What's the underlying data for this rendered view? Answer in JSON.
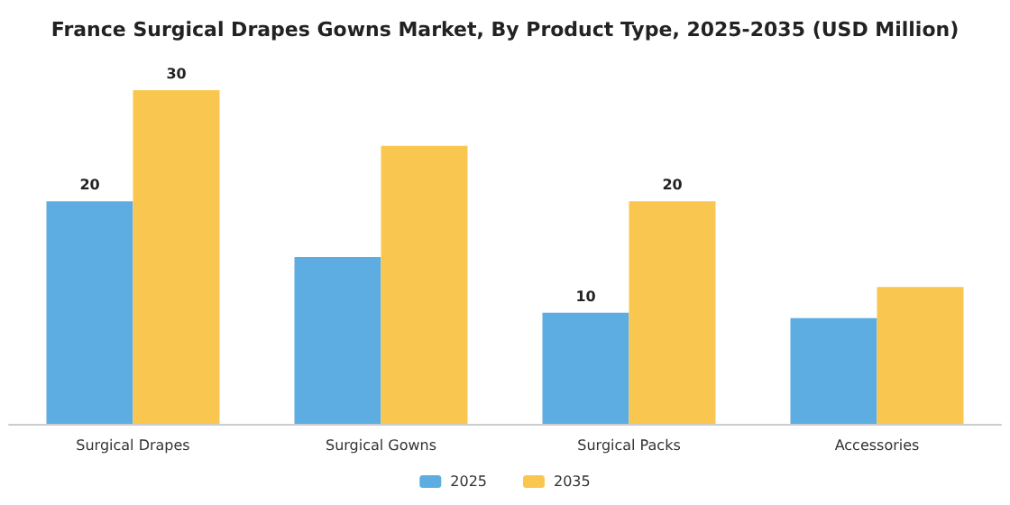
{
  "chart_data": {
    "type": "bar",
    "title": "France Surgical Drapes Gowns Market, By Product Type, 2025-2035 (USD Million)",
    "categories": [
      "Surgical Drapes",
      "Surgical Gowns",
      "Surgical Packs",
      "Accessories"
    ],
    "series": [
      {
        "name": "2025",
        "color": "#5dade2",
        "values": [
          20,
          15,
          10,
          9.5
        ],
        "value_labels": [
          "20",
          null,
          "10",
          null
        ]
      },
      {
        "name": "2035",
        "color": "#f9c74f",
        "values": [
          30,
          25,
          20,
          12.3
        ],
        "value_labels": [
          "30",
          null,
          "20",
          null
        ]
      }
    ],
    "grid": false,
    "legend": "bottom"
  }
}
